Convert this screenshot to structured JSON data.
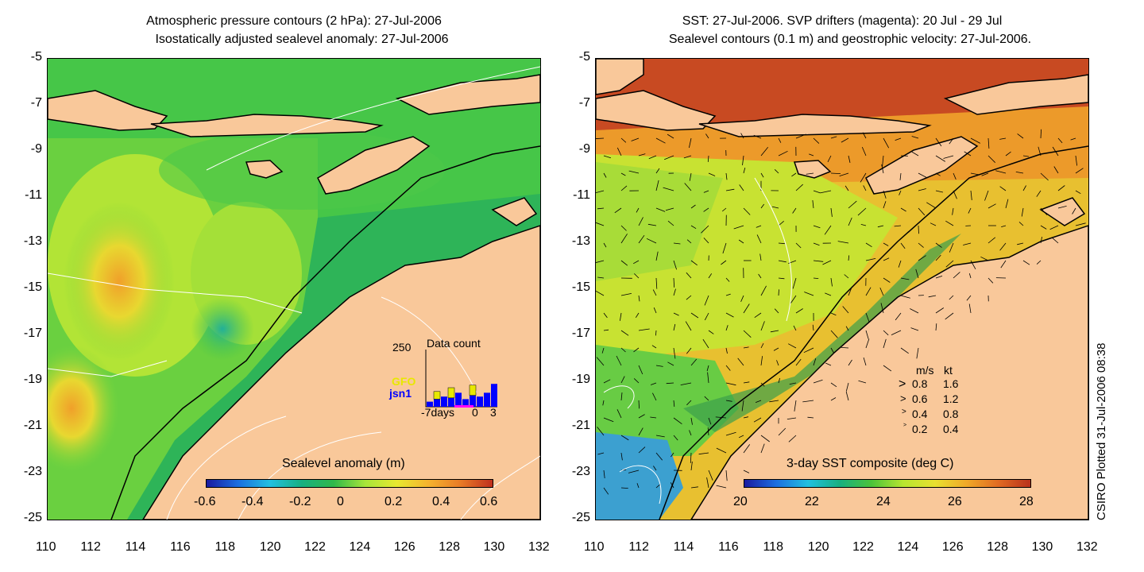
{
  "left_panel": {
    "title_line1": "Atmospheric pressure contours (2 hPa): 27-Jul-2006",
    "title_line2": "Isostatically adjusted sealevel anomaly: 27-Jul-2006",
    "colorbar": {
      "label": "Sealevel anomaly (m)",
      "ticks": [
        "-0.6",
        "-0.4",
        "-0.2",
        "0",
        "0.2",
        "0.4",
        "0.6"
      ],
      "colors": [
        "#1a1aa0",
        "#1c6fe0",
        "#22c0e0",
        "#18b080",
        "#2fb84a",
        "#a8e63a",
        "#e8e830",
        "#f5b22e",
        "#e87a26",
        "#c0301e"
      ]
    },
    "inset": {
      "title": "Data count",
      "ymax_label": "250",
      "x_labels": [
        "-7days",
        "0",
        "3"
      ],
      "satellites": [
        {
          "name": "GFO",
          "color": "#e8e800"
        },
        {
          "name": "jsn1",
          "color": "#0000ff"
        }
      ],
      "bars": {
        "jsn1": [
          20,
          30,
          40,
          35,
          55,
          30,
          45,
          40,
          55,
          90
        ],
        "GFO": [
          0,
          30,
          0,
          40,
          0,
          0,
          40,
          0,
          0,
          0
        ]
      }
    }
  },
  "right_panel": {
    "title_line1": "SST: 27-Jul-2006. SVP drifters (magenta): 20 Jul - 29 Jul",
    "title_line2": "Sealevel contours (0.1 m) and geostrophic velocity: 27-Jul-2006.",
    "colorbar": {
      "label": "3-day SST composite (deg C)",
      "ticks": [
        "20",
        "22",
        "24",
        "26",
        "28"
      ],
      "colors": [
        "#1a1aa0",
        "#1c6fe0",
        "#22c0e0",
        "#18b080",
        "#4cc43a",
        "#b8e630",
        "#e8e030",
        "#f0a828",
        "#e06a22",
        "#b8301c"
      ]
    },
    "velocity_legend": {
      "header_ms": "m/s",
      "header_kt": "kt",
      "rows": [
        {
          "ms": "0.8",
          "kt": "1.6"
        },
        {
          "ms": "0.6",
          "kt": "1.2"
        },
        {
          "ms": "0.4",
          "kt": "0.8"
        },
        {
          "ms": "0.2",
          "kt": "0.4"
        }
      ]
    }
  },
  "axes": {
    "lon_ticks": [
      "110",
      "112",
      "114",
      "116",
      "118",
      "120",
      "122",
      "124",
      "126",
      "128",
      "130",
      "132"
    ],
    "lat_ticks": [
      "-5",
      "-7",
      "-9",
      "-11",
      "-13",
      "-15",
      "-17",
      "-19",
      "-21",
      "-23",
      "-25"
    ]
  },
  "side_label": "CSIRO Plotted 31-Jul-2006 08:38",
  "colors": {
    "land": "#f9c89a",
    "sea_left": "#3cc24a",
    "sea_right": "#e8c030"
  }
}
